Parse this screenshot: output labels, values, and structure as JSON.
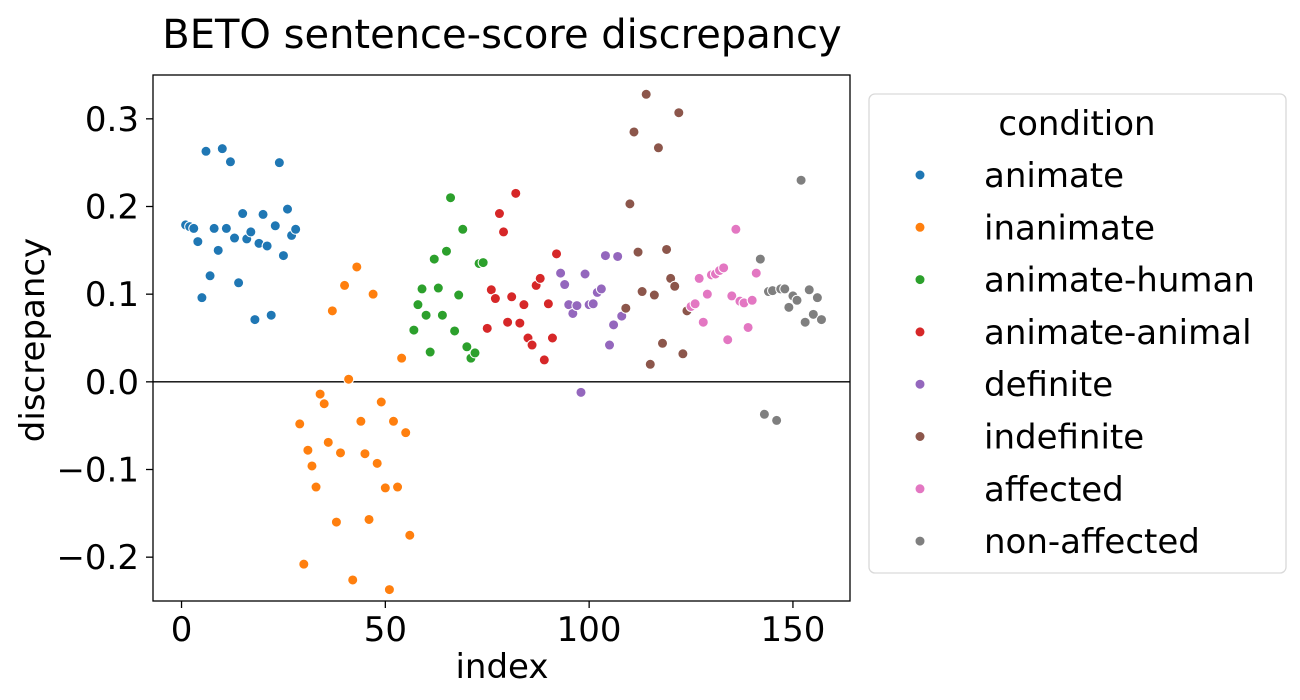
{
  "chart_data": {
    "type": "scatter",
    "title": "BETO sentence-score discrepancy",
    "xlabel": "index",
    "ylabel": "discrepancy",
    "xlim": [
      -7,
      164
    ],
    "ylim": [
      -0.25,
      0.35
    ],
    "xticks": [
      {
        "value": 0,
        "label": "0"
      },
      {
        "value": 50,
        "label": "50"
      },
      {
        "value": 100,
        "label": "100"
      },
      {
        "value": 150,
        "label": "150"
      }
    ],
    "yticks": [
      {
        "value": -0.2,
        "label": "−0.2"
      },
      {
        "value": -0.1,
        "label": "−0.1"
      },
      {
        "value": 0.0,
        "label": "0.0"
      },
      {
        "value": 0.1,
        "label": "0.1"
      },
      {
        "value": 0.2,
        "label": "0.2"
      },
      {
        "value": 0.3,
        "label": "0.3"
      }
    ],
    "reference_line_y": 0.0,
    "grid": false,
    "legend": {
      "title": "condition",
      "placement": "outside-right"
    },
    "series": [
      {
        "name": "animate",
        "color": "#1f77b4",
        "points": [
          [
            1,
            0.179
          ],
          [
            2,
            0.177
          ],
          [
            3,
            0.175
          ],
          [
            4,
            0.16
          ],
          [
            5,
            0.096
          ],
          [
            6,
            0.263
          ],
          [
            7,
            0.121
          ],
          [
            8,
            0.175
          ],
          [
            9,
            0.15
          ],
          [
            10,
            0.266
          ],
          [
            11,
            0.175
          ],
          [
            12,
            0.251
          ],
          [
            13,
            0.164
          ],
          [
            14,
            0.113
          ],
          [
            15,
            0.192
          ],
          [
            16,
            0.163
          ],
          [
            17,
            0.171
          ],
          [
            18,
            0.071
          ],
          [
            19,
            0.158
          ],
          [
            20,
            0.191
          ],
          [
            21,
            0.155
          ],
          [
            22,
            0.076
          ],
          [
            23,
            0.178
          ],
          [
            24,
            0.25
          ],
          [
            25,
            0.144
          ],
          [
            26,
            0.197
          ],
          [
            27,
            0.167
          ],
          [
            28,
            0.174
          ]
        ]
      },
      {
        "name": "inanimate",
        "color": "#ff7f0e",
        "points": [
          [
            29,
            -0.048
          ],
          [
            30,
            -0.208
          ],
          [
            31,
            -0.078
          ],
          [
            32,
            -0.096
          ],
          [
            33,
            -0.12
          ],
          [
            34,
            -0.014
          ],
          [
            35,
            -0.025
          ],
          [
            36,
            -0.069
          ],
          [
            37,
            0.081
          ],
          [
            38,
            -0.16
          ],
          [
            39,
            -0.081
          ],
          [
            40,
            0.11
          ],
          [
            41,
            0.003
          ],
          [
            42,
            -0.226
          ],
          [
            43,
            0.131
          ],
          [
            44,
            -0.045
          ],
          [
            45,
            -0.082
          ],
          [
            46,
            -0.157
          ],
          [
            47,
            0.1
          ],
          [
            48,
            -0.093
          ],
          [
            49,
            -0.023
          ],
          [
            50,
            -0.121
          ],
          [
            51,
            -0.237
          ],
          [
            52,
            -0.045
          ],
          [
            53,
            -0.12
          ],
          [
            54,
            0.027
          ],
          [
            55,
            -0.058
          ],
          [
            56,
            -0.175
          ]
        ]
      },
      {
        "name": "animate-human",
        "color": "#2ca02c",
        "points": [
          [
            57,
            0.059
          ],
          [
            58,
            0.088
          ],
          [
            59,
            0.106
          ],
          [
            60,
            0.076
          ],
          [
            61,
            0.034
          ],
          [
            62,
            0.14
          ],
          [
            63,
            0.107
          ],
          [
            64,
            0.076
          ],
          [
            65,
            0.149
          ],
          [
            66,
            0.21
          ],
          [
            67,
            0.058
          ],
          [
            68,
            0.099
          ],
          [
            69,
            0.174
          ],
          [
            70,
            0.04
          ],
          [
            71,
            0.027
          ],
          [
            72,
            0.033
          ],
          [
            73,
            0.135
          ],
          [
            74,
            0.136
          ]
        ]
      },
      {
        "name": "animate-animal",
        "color": "#d62728",
        "points": [
          [
            75,
            0.061
          ],
          [
            76,
            0.105
          ],
          [
            77,
            0.095
          ],
          [
            78,
            0.192
          ],
          [
            79,
            0.171
          ],
          [
            80,
            0.068
          ],
          [
            81,
            0.097
          ],
          [
            82,
            0.215
          ],
          [
            83,
            0.067
          ],
          [
            84,
            0.088
          ],
          [
            85,
            0.05
          ],
          [
            86,
            0.042
          ],
          [
            87,
            0.11
          ],
          [
            88,
            0.118
          ],
          [
            89,
            0.025
          ],
          [
            90,
            0.089
          ],
          [
            91,
            0.05
          ],
          [
            92,
            0.146
          ]
        ]
      },
      {
        "name": "definite",
        "color": "#9467bd",
        "points": [
          [
            93,
            0.124
          ],
          [
            94,
            0.111
          ],
          [
            95,
            0.088
          ],
          [
            96,
            0.078
          ],
          [
            97,
            0.087
          ],
          [
            98,
            -0.012
          ],
          [
            99,
            0.123
          ],
          [
            100,
            0.088
          ],
          [
            101,
            0.089
          ],
          [
            102,
            0.102
          ],
          [
            103,
            0.106
          ],
          [
            104,
            0.144
          ],
          [
            105,
            0.042
          ],
          [
            106,
            0.065
          ],
          [
            107,
            0.143
          ],
          [
            108,
            0.075
          ]
        ]
      },
      {
        "name": "indefinite",
        "color": "#8c564b",
        "points": [
          [
            109,
            0.084
          ],
          [
            110,
            0.203
          ],
          [
            111,
            0.285
          ],
          [
            112,
            0.148
          ],
          [
            113,
            0.103
          ],
          [
            114,
            0.328
          ],
          [
            115,
            0.02
          ],
          [
            116,
            0.099
          ],
          [
            117,
            0.267
          ],
          [
            118,
            0.044
          ],
          [
            119,
            0.151
          ],
          [
            120,
            0.118
          ],
          [
            121,
            0.109
          ],
          [
            122,
            0.307
          ],
          [
            123,
            0.032
          ],
          [
            124,
            0.081
          ]
        ]
      },
      {
        "name": "affected",
        "color": "#e377c2",
        "points": [
          [
            125,
            0.086
          ],
          [
            126,
            0.089
          ],
          [
            127,
            0.118
          ],
          [
            128,
            0.068
          ],
          [
            129,
            0.1
          ],
          [
            130,
            0.122
          ],
          [
            131,
            0.123
          ],
          [
            132,
            0.127
          ],
          [
            133,
            0.13
          ],
          [
            134,
            0.048
          ],
          [
            135,
            0.098
          ],
          [
            136,
            0.174
          ],
          [
            137,
            0.092
          ],
          [
            138,
            0.09
          ],
          [
            139,
            0.062
          ],
          [
            140,
            0.093
          ],
          [
            141,
            0.124
          ]
        ]
      },
      {
        "name": "non-affected",
        "color": "#7f7f7f",
        "points": [
          [
            142,
            0.14
          ],
          [
            143,
            -0.037
          ],
          [
            144,
            0.103
          ],
          [
            145,
            0.104
          ],
          [
            146,
            -0.044
          ],
          [
            147,
            0.106
          ],
          [
            148,
            0.106
          ],
          [
            149,
            0.085
          ],
          [
            150,
            0.098
          ],
          [
            151,
            0.093
          ],
          [
            152,
            0.23
          ],
          [
            153,
            0.068
          ],
          [
            154,
            0.105
          ],
          [
            155,
            0.077
          ],
          [
            156,
            0.096
          ],
          [
            157,
            0.071
          ]
        ]
      }
    ]
  }
}
